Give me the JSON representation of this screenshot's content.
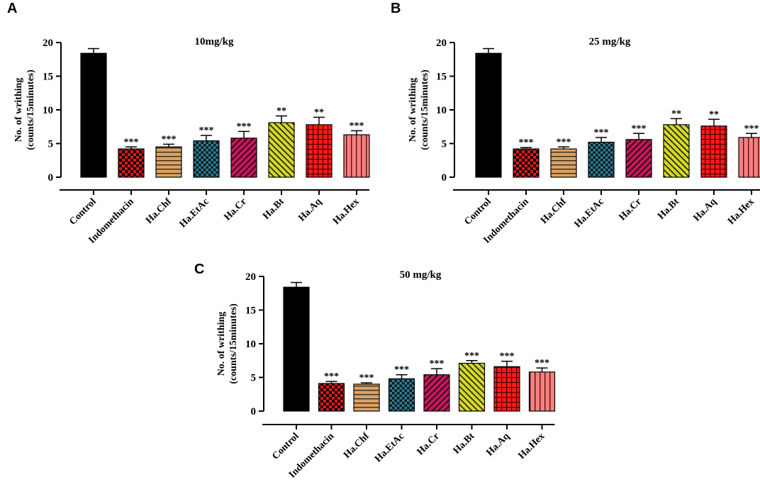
{
  "chart_data": [
    {
      "panel": "A",
      "type": "bar",
      "title": "10mg/kg",
      "ylabel": [
        "No. of writhing",
        "(counts/15minutes)"
      ],
      "xlabel": "",
      "ylim": [
        0,
        20
      ],
      "yticks": [
        0,
        5,
        10,
        15,
        20
      ],
      "categories": [
        "Control",
        "Indomethacin",
        "Ha.Chf",
        "Ha.EtAc",
        "Ha.Cr",
        "Ha.Bt",
        "Ha.Aq",
        "Ha.Hex"
      ],
      "values": [
        18.4,
        4.2,
        4.5,
        5.4,
        5.8,
        8.1,
        7.8,
        6.3
      ],
      "errors": [
        0.7,
        0.3,
        0.4,
        0.8,
        1.0,
        1.0,
        1.1,
        0.6
      ],
      "significance": [
        "",
        "***",
        "***",
        "***",
        "***",
        "**",
        "**",
        "***"
      ]
    },
    {
      "panel": "B",
      "type": "bar",
      "title": "25 mg/kg",
      "ylabel": [
        "No. of writhing",
        "(counts/15minutes)"
      ],
      "xlabel": "",
      "ylim": [
        0,
        20
      ],
      "yticks": [
        0,
        5,
        10,
        15,
        20
      ],
      "categories": [
        "Control",
        "Indomethacin",
        "Ha.Chf",
        "Ha.EtAc",
        "Ha.Cr",
        "Ha.Bt",
        "Ha.Aq",
        "Ha.Hex"
      ],
      "values": [
        18.4,
        4.2,
        4.2,
        5.2,
        5.6,
        7.8,
        7.6,
        5.9
      ],
      "errors": [
        0.7,
        0.2,
        0.3,
        0.7,
        0.9,
        0.9,
        1.0,
        0.6
      ],
      "significance": [
        "",
        "***",
        "***",
        "***",
        "***",
        "**",
        "**",
        "***"
      ]
    },
    {
      "panel": "C",
      "type": "bar",
      "title": "50 mg/kg",
      "ylabel": [
        "No. of writhing",
        "(counts/15minutes)"
      ],
      "xlabel": "",
      "ylim": [
        0,
        20
      ],
      "yticks": [
        0,
        5,
        10,
        15,
        20
      ],
      "categories": [
        "Control",
        "Indomethacin",
        "Ha.Chf",
        "Ha.EtAc",
        "Ha.Cr",
        "Ha.Bt",
        "Ha.Aq",
        "Ha.Hex"
      ],
      "values": [
        18.4,
        4.1,
        4.0,
        4.8,
        5.4,
        7.1,
        6.6,
        5.8
      ],
      "errors": [
        0.7,
        0.3,
        0.2,
        0.6,
        0.9,
        0.4,
        0.8,
        0.6
      ],
      "significance": [
        "",
        "***",
        "***",
        "***",
        "***",
        "***",
        "***",
        "***"
      ]
    }
  ],
  "colors": {
    "control": "#000000",
    "indomethacin": "#e01818",
    "chf": "#d9a266",
    "etac": "#2e7e92",
    "cr": "#c2185b",
    "bt": "#d4d82a",
    "aq": "#ff1a1a",
    "hex": "#f48080"
  }
}
